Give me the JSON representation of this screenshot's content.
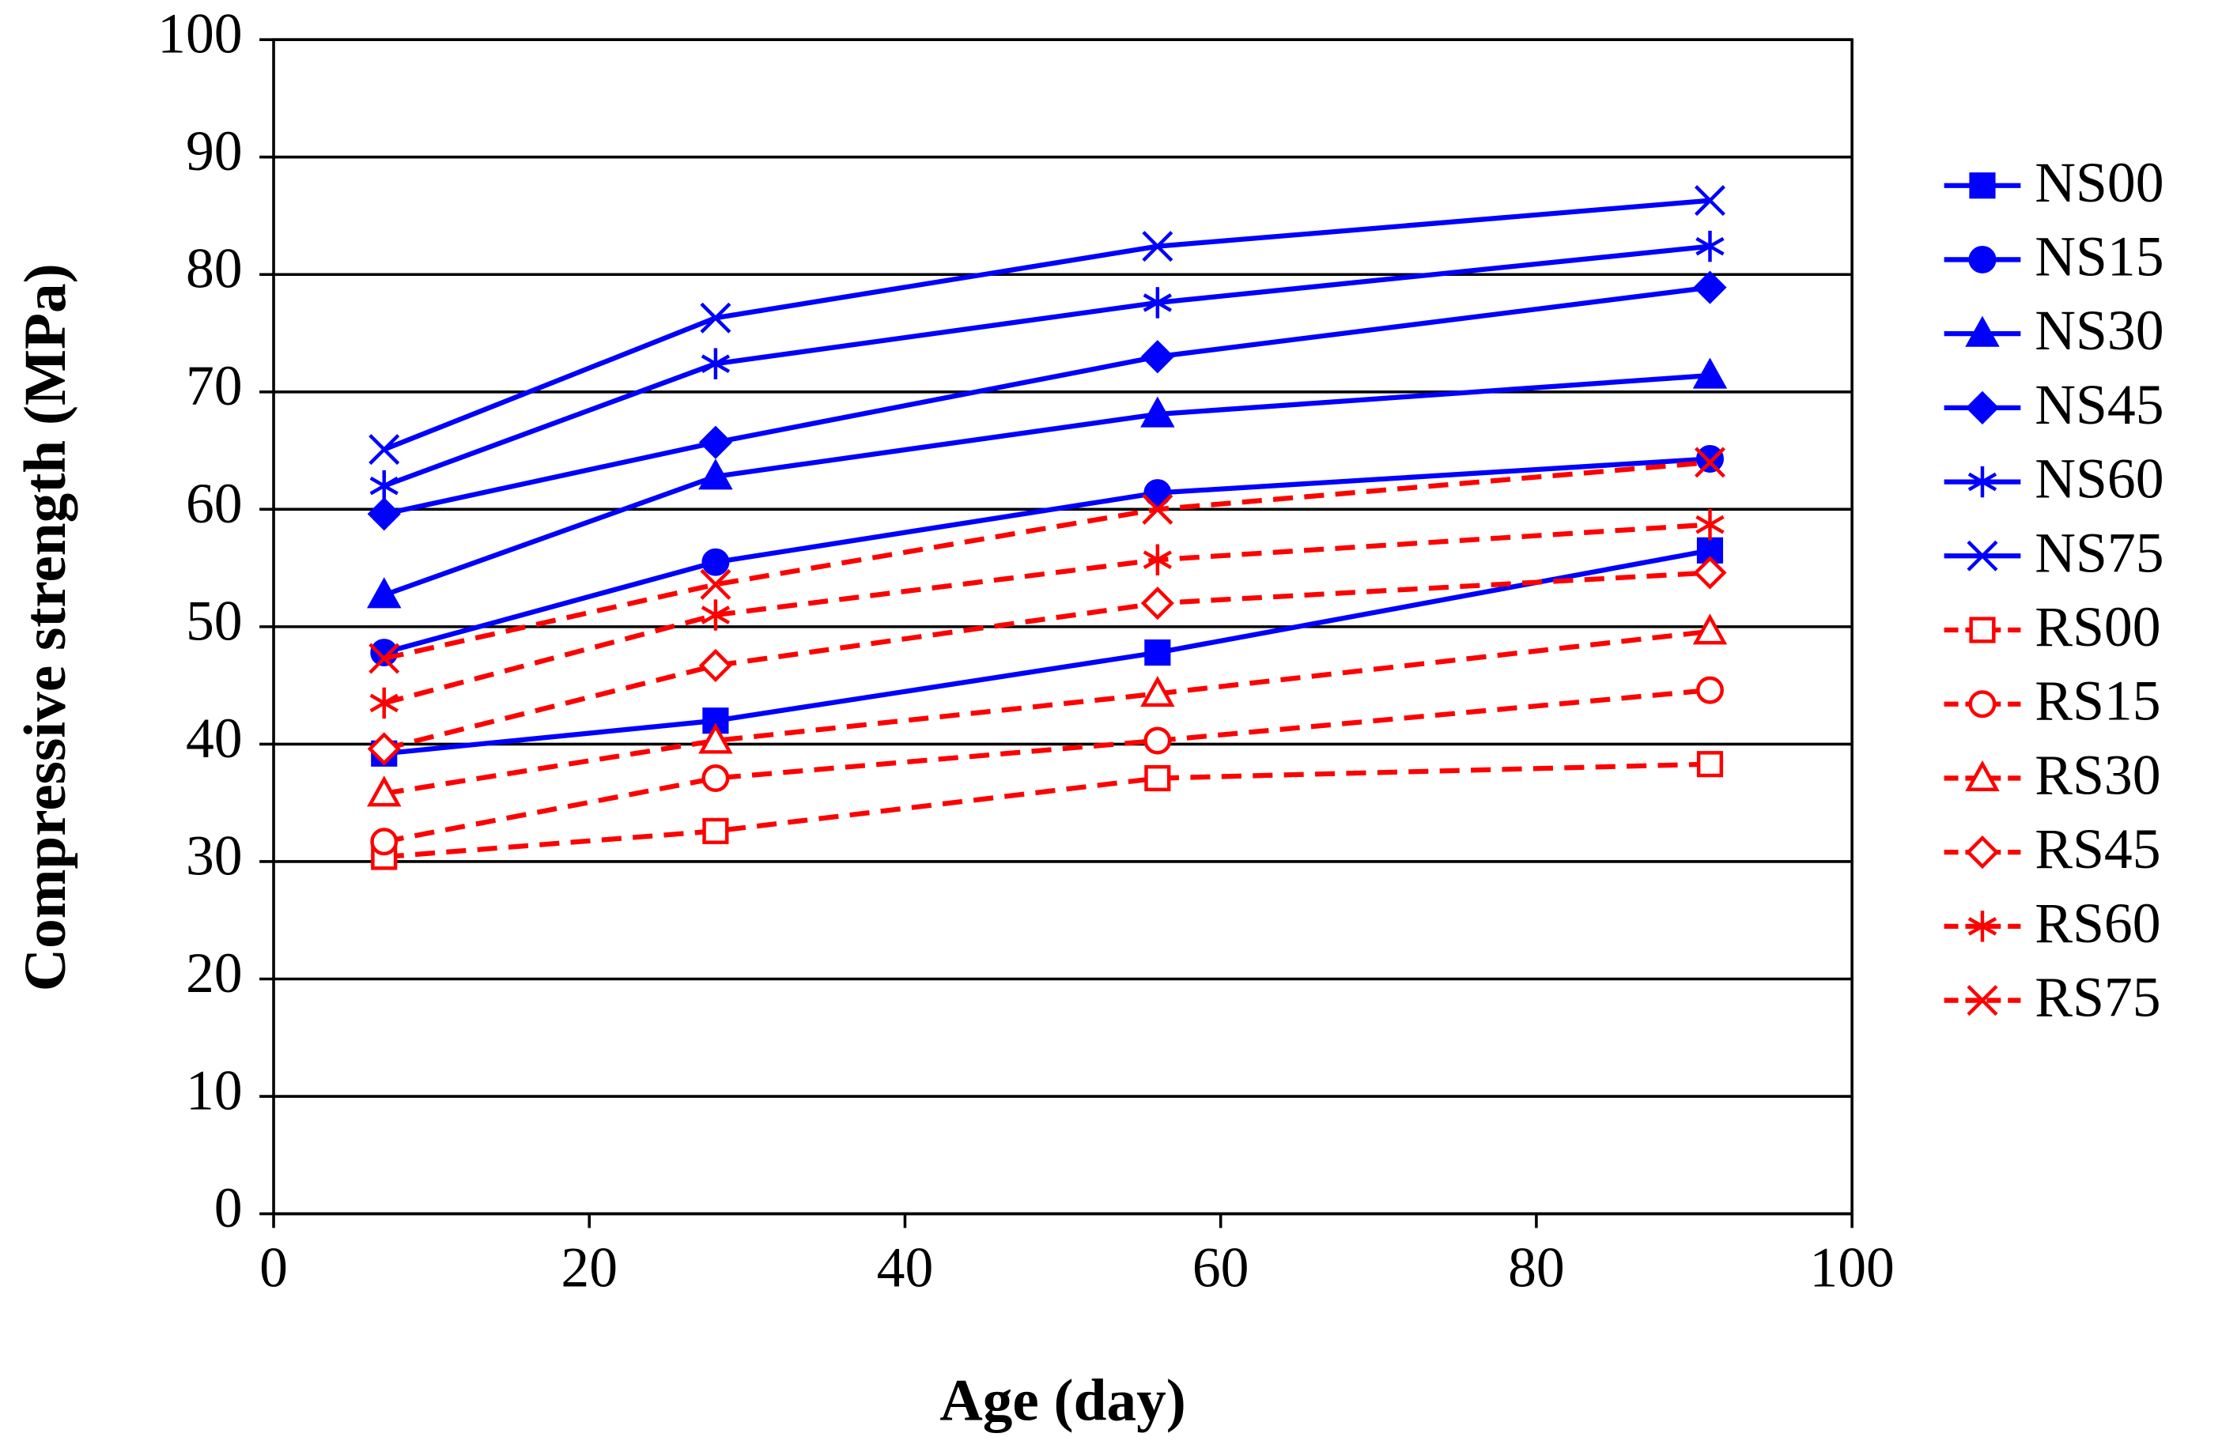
{
  "chart_data": {
    "type": "line",
    "x_label": "Age (day)",
    "y_label": "Compressive strength (MPa)",
    "x": [
      7,
      28,
      56,
      91
    ],
    "xlim": [
      0,
      100
    ],
    "xticks": [
      0,
      20,
      40,
      60,
      80,
      100
    ],
    "ylim": [
      0,
      100
    ],
    "yticks": [
      0,
      10,
      20,
      30,
      40,
      50,
      60,
      70,
      80,
      90,
      100
    ],
    "grid": true,
    "legend": "right",
    "series": [
      {
        "name": "NS00",
        "color": "#0000ff",
        "marker": "square",
        "filled": true,
        "dashed": false,
        "values": [
          39.2,
          42,
          47.8,
          56.5
        ]
      },
      {
        "name": "NS15",
        "color": "#0000ff",
        "marker": "circle",
        "filled": true,
        "dashed": false,
        "values": [
          47.8,
          55.5,
          61.4,
          64.3
        ]
      },
      {
        "name": "NS30",
        "color": "#0000ff",
        "marker": "triangle",
        "filled": true,
        "dashed": false,
        "values": [
          52.7,
          62.8,
          68.1,
          71.4
        ]
      },
      {
        "name": "NS45",
        "color": "#0000ff",
        "marker": "diamond",
        "filled": true,
        "dashed": false,
        "values": [
          59.6,
          65.7,
          73,
          78.9
        ]
      },
      {
        "name": "NS60",
        "color": "#0000ff",
        "marker": "asterisk",
        "filled": true,
        "dashed": false,
        "values": [
          62,
          72.4,
          77.6,
          82.4
        ]
      },
      {
        "name": "NS75",
        "color": "#0000ff",
        "marker": "x",
        "filled": true,
        "dashed": false,
        "values": [
          65.1,
          76.3,
          82.4,
          86.3
        ]
      },
      {
        "name": "RS00",
        "color": "#ff0000",
        "marker": "square",
        "filled": false,
        "dashed": true,
        "values": [
          30.4,
          32.6,
          37.1,
          38.3
        ]
      },
      {
        "name": "RS15",
        "color": "#ff0000",
        "marker": "circle",
        "filled": false,
        "dashed": true,
        "values": [
          31.7,
          37.1,
          40.3,
          44.6
        ]
      },
      {
        "name": "RS30",
        "color": "#ff0000",
        "marker": "triangle",
        "filled": false,
        "dashed": true,
        "values": [
          35.8,
          40.3,
          44.3,
          49.6
        ]
      },
      {
        "name": "RS45",
        "color": "#ff0000",
        "marker": "diamond",
        "filled": false,
        "dashed": true,
        "values": [
          39.6,
          46.7,
          52,
          54.6
        ]
      },
      {
        "name": "RS60",
        "color": "#ff0000",
        "marker": "asterisk",
        "filled": false,
        "dashed": true,
        "values": [
          43.5,
          51,
          55.7,
          58.7
        ]
      },
      {
        "name": "RS75",
        "color": "#ff0000",
        "marker": "x",
        "filled": false,
        "dashed": true,
        "values": [
          47.3,
          53.6,
          60,
          64
        ]
      }
    ]
  }
}
